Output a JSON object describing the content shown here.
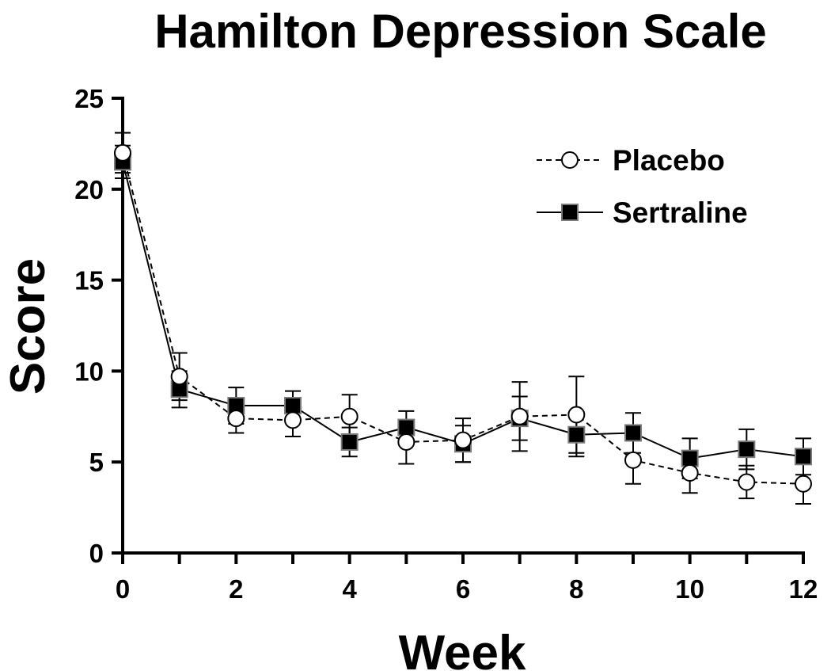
{
  "chart_data": {
    "type": "line",
    "title": "Hamilton Depression Scale",
    "xlabel": "Week",
    "ylabel": "Score",
    "xlim": [
      0,
      12
    ],
    "ylim": [
      0,
      25
    ],
    "xticks": [
      0,
      2,
      4,
      6,
      8,
      10,
      12
    ],
    "yticks": [
      0,
      5,
      10,
      15,
      20,
      25
    ],
    "grid": false,
    "legend_position": "top-right",
    "x": [
      0,
      1,
      2,
      3,
      4,
      5,
      6,
      7,
      8,
      9,
      10,
      11,
      12
    ],
    "series": [
      {
        "name": "Placebo",
        "line_style": "dashed",
        "marker": "open-circle",
        "values": [
          22.0,
          9.7,
          7.4,
          7.3,
          7.5,
          6.1,
          6.2,
          7.5,
          7.6,
          5.1,
          4.4,
          3.9,
          3.8
        ],
        "error": [
          1.1,
          1.3,
          0.8,
          0.9,
          1.2,
          1.2,
          1.2,
          1.9,
          2.1,
          1.3,
          1.1,
          0.9,
          1.1
        ]
      },
      {
        "name": "Sertraline",
        "line_style": "solid",
        "marker": "filled-square",
        "values": [
          21.5,
          9.0,
          8.1,
          8.1,
          6.1,
          6.9,
          6.0,
          7.4,
          6.5,
          6.6,
          5.2,
          5.7,
          5.3
        ],
        "error": [
          0.9,
          1.0,
          1.0,
          0.8,
          0.8,
          0.9,
          1.0,
          1.2,
          1.2,
          1.1,
          1.1,
          1.1,
          1.0
        ]
      }
    ]
  }
}
